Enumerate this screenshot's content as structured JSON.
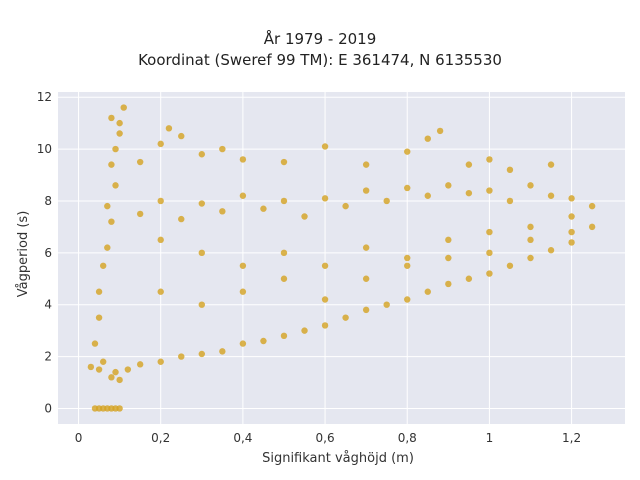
{
  "chart_data": {
    "type": "scatter",
    "title_lines": [
      "År 1979 - 2019",
      "Koordinat (Sweref 99 TM): E 361474, N 6135530"
    ],
    "xlabel": "Signifikant våghöjd (m)",
    "ylabel": "Vågperiod (s)",
    "xlim": [
      -0.05,
      1.33
    ],
    "ylim": [
      -0.6,
      12.2
    ],
    "x_ticks": [
      0,
      0.2,
      0.4,
      0.6,
      0.8,
      1,
      1.2
    ],
    "x_tick_labels": [
      "0",
      "0,2",
      "0,4",
      "0,6",
      "0,8",
      "1",
      "1,2"
    ],
    "y_ticks": [
      0,
      2,
      4,
      6,
      8,
      10,
      12
    ],
    "y_tick_labels": [
      "0",
      "2",
      "4",
      "6",
      "8",
      "10",
      "12"
    ],
    "grid": true,
    "plot_background": "#e5e7f0",
    "marker_color": "#d4a320",
    "series": [
      {
        "points": [
          [
            0.03,
            1.6
          ],
          [
            0.05,
            1.5
          ],
          [
            0.06,
            1.8
          ],
          [
            0.08,
            1.2
          ],
          [
            0.09,
            1.4
          ],
          [
            0.1,
            1.1
          ],
          [
            0.12,
            1.5
          ],
          [
            0.15,
            1.7
          ],
          [
            0.2,
            1.8
          ],
          [
            0.25,
            2.0
          ],
          [
            0.3,
            2.1
          ],
          [
            0.35,
            2.2
          ],
          [
            0.4,
            2.5
          ],
          [
            0.45,
            2.6
          ],
          [
            0.5,
            2.8
          ],
          [
            0.55,
            3.0
          ],
          [
            0.6,
            3.2
          ],
          [
            0.65,
            3.5
          ],
          [
            0.7,
            3.8
          ],
          [
            0.75,
            4.0
          ],
          [
            0.8,
            4.2
          ],
          [
            0.85,
            4.5
          ],
          [
            0.9,
            4.8
          ],
          [
            0.95,
            5.0
          ],
          [
            1.0,
            5.2
          ],
          [
            1.05,
            5.5
          ],
          [
            1.1,
            5.8
          ],
          [
            1.15,
            6.1
          ],
          [
            1.2,
            6.4
          ],
          [
            1.25,
            7.0
          ],
          [
            0.04,
            2.5
          ],
          [
            0.05,
            3.5
          ],
          [
            0.05,
            4.5
          ],
          [
            0.06,
            5.5
          ],
          [
            0.07,
            6.2
          ],
          [
            0.08,
            7.2
          ],
          [
            0.07,
            7.8
          ],
          [
            0.09,
            8.6
          ],
          [
            0.08,
            9.4
          ],
          [
            0.09,
            10.0
          ],
          [
            0.1,
            10.6
          ],
          [
            0.08,
            11.2
          ],
          [
            0.11,
            11.6
          ],
          [
            0.1,
            11.0
          ],
          [
            0.15,
            7.5
          ],
          [
            0.2,
            8.0
          ],
          [
            0.25,
            7.3
          ],
          [
            0.3,
            7.9
          ],
          [
            0.35,
            7.6
          ],
          [
            0.4,
            8.2
          ],
          [
            0.45,
            7.7
          ],
          [
            0.5,
            8.0
          ],
          [
            0.55,
            7.4
          ],
          [
            0.6,
            8.1
          ],
          [
            0.65,
            7.8
          ],
          [
            0.7,
            8.4
          ],
          [
            0.75,
            8.0
          ],
          [
            0.8,
            8.5
          ],
          [
            0.85,
            8.2
          ],
          [
            0.9,
            8.6
          ],
          [
            0.95,
            8.3
          ],
          [
            1.0,
            8.4
          ],
          [
            1.05,
            8.0
          ],
          [
            1.1,
            8.6
          ],
          [
            1.15,
            8.2
          ],
          [
            1.2,
            8.1
          ],
          [
            1.25,
            7.8
          ],
          [
            0.15,
            9.5
          ],
          [
            0.2,
            10.2
          ],
          [
            0.22,
            10.8
          ],
          [
            0.25,
            10.5
          ],
          [
            0.3,
            9.8
          ],
          [
            0.35,
            10.0
          ],
          [
            0.4,
            9.6
          ],
          [
            0.5,
            9.5
          ],
          [
            0.6,
            10.1
          ],
          [
            0.7,
            9.4
          ],
          [
            0.8,
            9.9
          ],
          [
            0.85,
            10.4
          ],
          [
            0.88,
            10.7
          ],
          [
            0.95,
            9.4
          ],
          [
            1.0,
            9.6
          ],
          [
            1.05,
            9.2
          ],
          [
            1.15,
            9.4
          ],
          [
            0.2,
            6.5
          ],
          [
            0.3,
            6.0
          ],
          [
            0.4,
            5.5
          ],
          [
            0.5,
            6.0
          ],
          [
            0.6,
            5.5
          ],
          [
            0.7,
            6.2
          ],
          [
            0.8,
            5.8
          ],
          [
            0.9,
            6.5
          ],
          [
            1.0,
            6.8
          ],
          [
            1.1,
            7.0
          ],
          [
            1.2,
            7.4
          ],
          [
            0.2,
            4.5
          ],
          [
            0.3,
            4.0
          ],
          [
            0.4,
            4.5
          ],
          [
            0.5,
            5.0
          ],
          [
            0.6,
            4.2
          ],
          [
            0.7,
            5.0
          ],
          [
            0.8,
            5.5
          ],
          [
            0.9,
            5.8
          ],
          [
            1.0,
            6.0
          ],
          [
            1.1,
            6.5
          ],
          [
            1.2,
            6.8
          ],
          [
            0.04,
            0.0
          ],
          [
            0.05,
            0.0
          ],
          [
            0.06,
            0.0
          ],
          [
            0.07,
            0.0
          ],
          [
            0.08,
            0.0
          ],
          [
            0.09,
            0.0
          ],
          [
            0.1,
            0.0
          ]
        ]
      }
    ]
  }
}
